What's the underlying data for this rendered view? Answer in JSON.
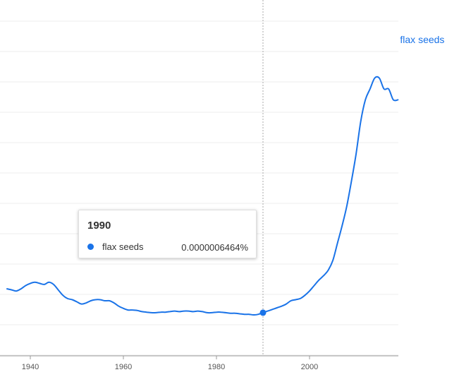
{
  "chart_data": {
    "type": "line",
    "title": "",
    "xlabel": "",
    "ylabel": "",
    "x_ticks": [
      "1940",
      "1960",
      "1980",
      "2000"
    ],
    "grid": true,
    "legend": "end-of-line label",
    "series": [
      {
        "name": "flax seeds",
        "color": "#1a73e8",
        "points": [
          [
            1935,
            7.6e-07
          ],
          [
            1936,
            7.5e-07
          ],
          [
            1937,
            7.4e-07
          ],
          [
            1938,
            7.6e-07
          ],
          [
            1939,
            7.9e-07
          ],
          [
            1940,
            8.1e-07
          ],
          [
            1941,
            8.2e-07
          ],
          [
            1942,
            8.1e-07
          ],
          [
            1943,
            8e-07
          ],
          [
            1944,
            8.2e-07
          ],
          [
            1945,
            8e-07
          ],
          [
            1946,
            7.5e-07
          ],
          [
            1947,
            7e-07
          ],
          [
            1948,
            6.7e-07
          ],
          [
            1949,
            6.6e-07
          ],
          [
            1950,
            6.4e-07
          ],
          [
            1951,
            6.2e-07
          ],
          [
            1952,
            6.3e-07
          ],
          [
            1953,
            6.5e-07
          ],
          [
            1954,
            6.6e-07
          ],
          [
            1955,
            6.6e-07
          ],
          [
            1956,
            6.5e-07
          ],
          [
            1957,
            6.5e-07
          ],
          [
            1958,
            6.3e-07
          ],
          [
            1959,
            6e-07
          ],
          [
            1960,
            5.8e-07
          ],
          [
            1961,
            5.65e-07
          ],
          [
            1962,
            5.65e-07
          ],
          [
            1963,
            5.6e-07
          ],
          [
            1964,
            5.5e-07
          ],
          [
            1965,
            5.45e-07
          ],
          [
            1966,
            5.4e-07
          ],
          [
            1967,
            5.4e-07
          ],
          [
            1968,
            5.45e-07
          ],
          [
            1969,
            5.45e-07
          ],
          [
            1970,
            5.5e-07
          ],
          [
            1971,
            5.55e-07
          ],
          [
            1972,
            5.5e-07
          ],
          [
            1973,
            5.55e-07
          ],
          [
            1974,
            5.55e-07
          ],
          [
            1975,
            5.5e-07
          ],
          [
            1976,
            5.55e-07
          ],
          [
            1977,
            5.5e-07
          ],
          [
            1978,
            5.4e-07
          ],
          [
            1979,
            5.4e-07
          ],
          [
            1980,
            5.45e-07
          ],
          [
            1981,
            5.45e-07
          ],
          [
            1982,
            5.4e-07
          ],
          [
            1983,
            5.35e-07
          ],
          [
            1984,
            5.35e-07
          ],
          [
            1985,
            5.3e-07
          ],
          [
            1986,
            5.25e-07
          ],
          [
            1987,
            5.25e-07
          ],
          [
            1988,
            5.2e-07
          ],
          [
            1989,
            5.25e-07
          ],
          [
            1990,
            6.464e-07
          ],
          [
            1991,
            5.55e-07
          ],
          [
            1992,
            5.7e-07
          ],
          [
            1993,
            5.85e-07
          ],
          [
            1994,
            6e-07
          ],
          [
            1995,
            6.2e-07
          ],
          [
            1996,
            6.5e-07
          ],
          [
            1997,
            6.6e-07
          ],
          [
            1998,
            6.7e-07
          ],
          [
            1999,
            7e-07
          ],
          [
            2000,
            7.4e-07
          ],
          [
            2001,
            7.9e-07
          ],
          [
            2002,
            8.4e-07
          ],
          [
            2003,
            8.8e-07
          ],
          [
            2004,
            9.3e-07
          ],
          [
            2005,
            1.02e-06
          ],
          [
            2006,
            1.18e-06
          ],
          [
            2007,
            1.34e-06
          ],
          [
            2008,
            1.52e-06
          ],
          [
            2009,
            1.75e-06
          ],
          [
            2010,
            2e-06
          ],
          [
            2011,
            2.3e-06
          ],
          [
            2012,
            2.5e-06
          ],
          [
            2013,
            2.6e-06
          ],
          [
            2014,
            2.7e-06
          ],
          [
            2015,
            2.7e-06
          ],
          [
            2016,
            2.6e-06
          ],
          [
            2017,
            2.6e-06
          ],
          [
            2018,
            2.5e-06
          ],
          [
            2019,
            2.5e-06
          ]
        ]
      }
    ],
    "highlight": {
      "year": "1990",
      "series": "flax seeds",
      "value_label": "0.0000006464%"
    }
  }
}
